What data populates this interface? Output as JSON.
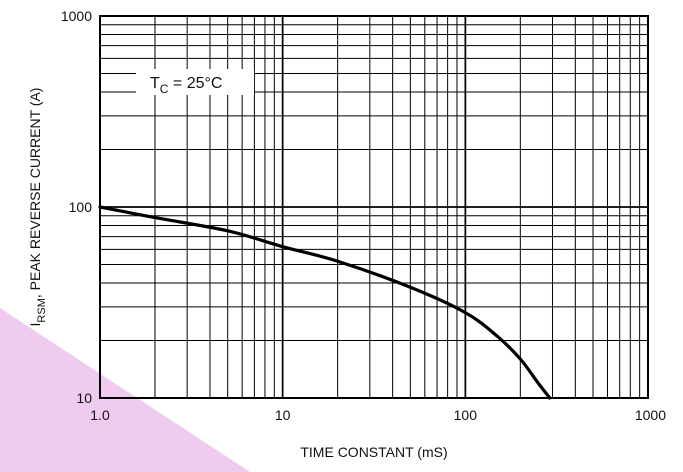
{
  "chart_data": {
    "type": "line",
    "x_scale": "log",
    "y_scale": "log",
    "xlim": [
      1,
      1000
    ],
    "ylim": [
      10,
      1000
    ],
    "grid": true,
    "xlabel": "TIME CONSTANT (mS)",
    "ylabel": {
      "main": "I",
      "sub": "RSM",
      "rest": ", PEAK REVERSE CURRENT (A)"
    },
    "x_ticks": [
      {
        "value": 1,
        "label": "1.0"
      },
      {
        "value": 10,
        "label": "10"
      },
      {
        "value": 100,
        "label": "100"
      },
      {
        "value": 1000,
        "label": "1000"
      }
    ],
    "y_ticks": [
      {
        "value": 10,
        "label": "10"
      },
      {
        "value": 100,
        "label": "100"
      },
      {
        "value": 1000,
        "label": "1000"
      }
    ],
    "annotation": {
      "prefix": "T",
      "sub": "C",
      "suffix": " = 25°C"
    },
    "series": [
      {
        "x": [
          1.0,
          2.0,
          5.0,
          10,
          20,
          50,
          100,
          150,
          200,
          250,
          290
        ],
        "y": [
          100,
          88,
          75,
          62,
          52,
          38,
          28,
          21,
          16,
          12,
          10
        ],
        "color": "#000000"
      }
    ]
  },
  "colors": {
    "grid": "#000000",
    "curve": "#000000",
    "background": "#ffffff",
    "decoration": "#efcbef"
  }
}
